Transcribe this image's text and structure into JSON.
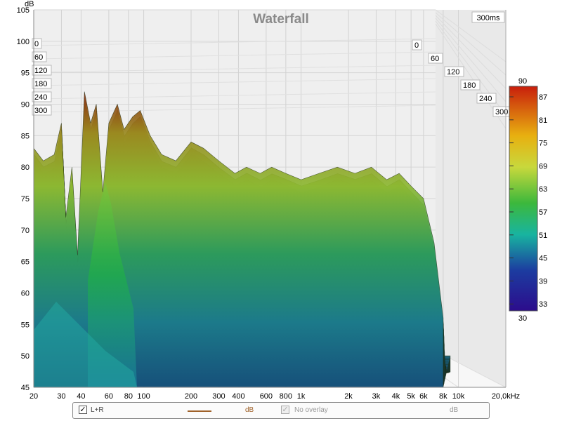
{
  "chart_data": {
    "type": "waterfall",
    "title": "Waterfall",
    "ylabel": "dB",
    "ylim": [
      45,
      105
    ],
    "y_ticks": [
      45,
      50,
      55,
      60,
      65,
      70,
      75,
      80,
      85,
      90,
      95,
      100,
      105
    ],
    "x_ticks": [
      "20",
      "30",
      "40",
      "60",
      "80",
      "100",
      "200",
      "300",
      "400",
      "600",
      "800",
      "1k",
      "2k",
      "3k",
      "4k",
      "5k",
      "6k",
      "8k",
      "10k",
      "20,0kHz"
    ],
    "time_label": "300ms",
    "time_ticks_left": [
      "0",
      "60",
      "120",
      "180",
      "240",
      "300"
    ],
    "time_ticks_right": [
      "0",
      "60",
      "120",
      "180",
      "240",
      "300"
    ],
    "colorbar": {
      "max_label": "90",
      "min_label": "30",
      "ticks": [
        "87",
        "81",
        "75",
        "69",
        "63",
        "57",
        "51",
        "45",
        "39",
        "33"
      ],
      "colors": [
        "#c81e0c",
        "#e8b010",
        "#c8d83c",
        "#3cb83c",
        "#18b4a0",
        "#1c3ca0",
        "#2c0c8c"
      ]
    },
    "front_slice_db": [
      {
        "f": 20,
        "db": 83
      },
      {
        "f": 23,
        "db": 81
      },
      {
        "f": 27,
        "db": 82
      },
      {
        "f": 30,
        "db": 87
      },
      {
        "f": 32,
        "db": 72
      },
      {
        "f": 35,
        "db": 80
      },
      {
        "f": 38,
        "db": 66
      },
      {
        "f": 42,
        "db": 92
      },
      {
        "f": 46,
        "db": 87
      },
      {
        "f": 50,
        "db": 90
      },
      {
        "f": 55,
        "db": 76
      },
      {
        "f": 60,
        "db": 87
      },
      {
        "f": 68,
        "db": 90
      },
      {
        "f": 75,
        "db": 86
      },
      {
        "f": 85,
        "db": 88
      },
      {
        "f": 95,
        "db": 89
      },
      {
        "f": 110,
        "db": 85
      },
      {
        "f": 130,
        "db": 82
      },
      {
        "f": 160,
        "db": 81
      },
      {
        "f": 200,
        "db": 84
      },
      {
        "f": 240,
        "db": 83
      },
      {
        "f": 300,
        "db": 81
      },
      {
        "f": 380,
        "db": 79
      },
      {
        "f": 450,
        "db": 80
      },
      {
        "f": 550,
        "db": 79
      },
      {
        "f": 650,
        "db": 80
      },
      {
        "f": 800,
        "db": 79
      },
      {
        "f": 1000,
        "db": 78
      },
      {
        "f": 1300,
        "db": 79
      },
      {
        "f": 1700,
        "db": 80
      },
      {
        "f": 2200,
        "db": 79
      },
      {
        "f": 2800,
        "db": 80
      },
      {
        "f": 3500,
        "db": 78
      },
      {
        "f": 4200,
        "db": 79
      },
      {
        "f": 5000,
        "db": 77
      },
      {
        "f": 6000,
        "db": 75
      },
      {
        "f": 7000,
        "db": 68
      },
      {
        "f": 8000,
        "db": 56
      }
    ]
  },
  "legend": {
    "series_label": "L+R",
    "series_unit": "dB",
    "series_color": "#a0622a",
    "overlay_label": "No overlay",
    "overlay_unit": "dB"
  }
}
